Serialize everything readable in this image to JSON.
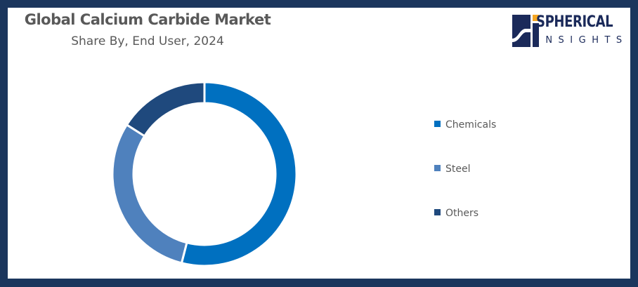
{
  "header": {
    "title": "Global Calcium Carbide Market",
    "subtitle": "Share By, End User, 2024"
  },
  "logo": {
    "line1": "SPHERICAL",
    "line2": "INSIGHTS",
    "accent_color": "#f5a623",
    "primary_color": "#1b2a5a"
  },
  "frame": {
    "border_color": "#1b365d",
    "background": "#ffffff"
  },
  "legend": {
    "items": [
      {
        "label": "Chemicals",
        "color": "#0070c0"
      },
      {
        "label": "Steel",
        "color": "#4f81bd"
      },
      {
        "label": "Others",
        "color": "#1f497d"
      }
    ]
  },
  "chart_data": {
    "type": "pie",
    "variant": "donut",
    "title": "Global Calcium Carbide Market",
    "subtitle": "Share By, End User, 2024",
    "categories": [
      "Chemicals",
      "Steel",
      "Others"
    ],
    "values": [
      54,
      30,
      16
    ],
    "unit": "%",
    "colors": [
      "#0070c0",
      "#4f81bd",
      "#1f497d"
    ],
    "start_angle_deg": 0,
    "direction": "clockwise",
    "legend_position": "right",
    "data_labels": false
  }
}
